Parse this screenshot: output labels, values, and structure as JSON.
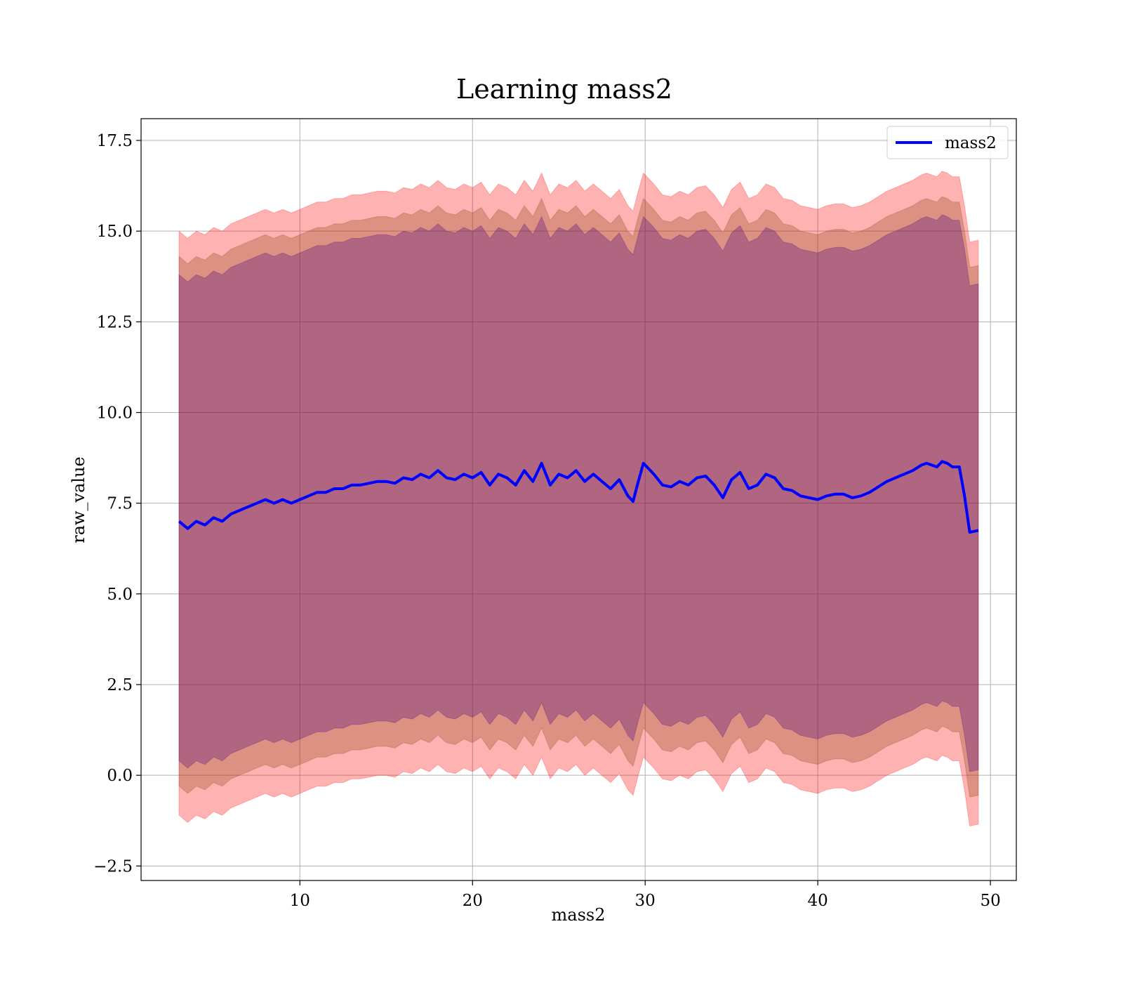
{
  "chart_data": {
    "type": "line",
    "title": "Learning mass2",
    "xlabel": "mass2",
    "ylabel": "raw_value",
    "xlim": [
      0.8,
      51.5
    ],
    "ylim": [
      -2.9,
      18.1
    ],
    "xticks": [
      10,
      20,
      30,
      40,
      50
    ],
    "yticks": [
      -2.5,
      0.0,
      2.5,
      5.0,
      7.5,
      10.0,
      12.5,
      15.0,
      17.5
    ],
    "xtick_labels": [
      "10",
      "20",
      "30",
      "40",
      "50"
    ],
    "ytick_labels": [
      "−2.5",
      "0.0",
      "2.5",
      "5.0",
      "7.5",
      "10.0",
      "12.5",
      "15.0",
      "17.5"
    ],
    "grid": true,
    "legend": {
      "position": "top-right",
      "entries": [
        "mass2"
      ]
    },
    "series": [
      {
        "name": "mass2",
        "color": "#0000ff",
        "x": [
          3.0,
          3.5,
          4.0,
          4.5,
          5.0,
          5.5,
          6.0,
          6.5,
          7.0,
          7.5,
          8.0,
          8.5,
          9.0,
          9.5,
          10.0,
          10.5,
          11.0,
          11.5,
          12.0,
          12.5,
          13.0,
          13.5,
          14.0,
          14.5,
          15.0,
          15.5,
          16.0,
          16.5,
          17.0,
          17.5,
          18.0,
          18.5,
          19.0,
          19.5,
          20.0,
          20.5,
          21.0,
          21.5,
          22.0,
          22.5,
          23.0,
          23.5,
          24.0,
          24.5,
          25.0,
          25.5,
          26.0,
          26.5,
          27.0,
          27.5,
          28.0,
          28.5,
          29.0,
          29.3,
          29.6,
          29.9,
          30.5,
          31.0,
          31.5,
          32.0,
          32.5,
          33.0,
          33.5,
          34.0,
          34.5,
          35.0,
          35.5,
          36.0,
          36.5,
          37.0,
          37.5,
          38.0,
          38.5,
          39.0,
          39.5,
          40.0,
          40.5,
          41.0,
          41.5,
          42.0,
          42.5,
          43.0,
          43.5,
          44.0,
          44.5,
          45.0,
          45.5,
          46.0,
          46.3,
          46.6,
          46.9,
          47.2,
          47.5,
          47.8,
          48.2,
          48.5,
          48.8,
          49.3
        ],
        "y": [
          7.0,
          6.8,
          7.0,
          6.9,
          7.1,
          7.0,
          7.2,
          7.3,
          7.4,
          7.5,
          7.6,
          7.5,
          7.6,
          7.5,
          7.6,
          7.7,
          7.8,
          7.8,
          7.9,
          7.9,
          8.0,
          8.0,
          8.05,
          8.1,
          8.1,
          8.05,
          8.2,
          8.15,
          8.3,
          8.2,
          8.4,
          8.2,
          8.15,
          8.3,
          8.2,
          8.35,
          8.0,
          8.3,
          8.2,
          8.0,
          8.4,
          8.1,
          8.6,
          8.0,
          8.3,
          8.2,
          8.4,
          8.1,
          8.3,
          8.1,
          7.9,
          8.15,
          7.7,
          7.55,
          8.1,
          8.6,
          8.3,
          8.0,
          7.95,
          8.1,
          8.0,
          8.2,
          8.25,
          8.0,
          7.65,
          8.15,
          8.35,
          7.9,
          8.0,
          8.3,
          8.2,
          7.9,
          7.85,
          7.7,
          7.65,
          7.6,
          7.7,
          7.75,
          7.75,
          7.65,
          7.7,
          7.8,
          7.95,
          8.1,
          8.2,
          8.3,
          8.4,
          8.55,
          8.6,
          8.55,
          8.5,
          8.65,
          8.6,
          8.5,
          8.5,
          7.7,
          6.7,
          6.75
        ]
      }
    ],
    "bands": [
      {
        "color": "#ff0000",
        "opacity": 0.3,
        "lower_offset": -8.1,
        "upper_offset": 8.0
      },
      {
        "color": "#8b4513",
        "opacity": 0.3,
        "lower_offset": -7.3,
        "upper_offset": 7.3
      },
      {
        "color": "#4b0082",
        "opacity": 0.3,
        "lower_offset": -6.6,
        "upper_offset": 6.8
      }
    ]
  }
}
